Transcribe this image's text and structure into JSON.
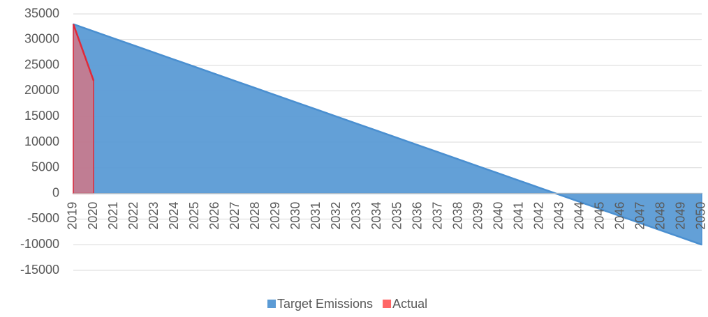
{
  "chart_data": {
    "type": "area",
    "categories": [
      "2019",
      "2020",
      "2021",
      "2022",
      "2023",
      "2024",
      "2025",
      "2026",
      "2027",
      "2028",
      "2029",
      "2030",
      "2031",
      "2032",
      "2033",
      "2034",
      "2035",
      "2036",
      "2037",
      "2038",
      "2039",
      "2040",
      "2041",
      "2042",
      "2043",
      "2044",
      "2045",
      "2046",
      "2047",
      "2048",
      "2049",
      "2050"
    ],
    "series": [
      {
        "name": "Target Emissions",
        "color": "#5b9bd5",
        "line_color": "#4a8fd0",
        "values": [
          33000,
          31613,
          30226,
          28839,
          27452,
          26065,
          24677,
          23290,
          21903,
          20516,
          19129,
          17742,
          16355,
          14968,
          13581,
          12194,
          10806,
          9419,
          8032,
          6645,
          5258,
          3871,
          2484,
          1097,
          -290,
          -1677,
          -3065,
          -4452,
          -5839,
          -7226,
          -8613,
          -10000
        ]
      },
      {
        "name": "Actual",
        "color": "#ff6666",
        "line_color": "#e02a3a",
        "values": [
          33000,
          22000,
          null,
          null,
          null,
          null,
          null,
          null,
          null,
          null,
          null,
          null,
          null,
          null,
          null,
          null,
          null,
          null,
          null,
          null,
          null,
          null,
          null,
          null,
          null,
          null,
          null,
          null,
          null,
          null,
          null,
          null
        ]
      }
    ],
    "ylim": [
      -15000,
      35000
    ],
    "yticks": [
      -15000,
      -10000,
      -5000,
      0,
      5000,
      10000,
      15000,
      20000,
      25000,
      30000,
      35000
    ],
    "grid": true,
    "legend": "bottom"
  }
}
